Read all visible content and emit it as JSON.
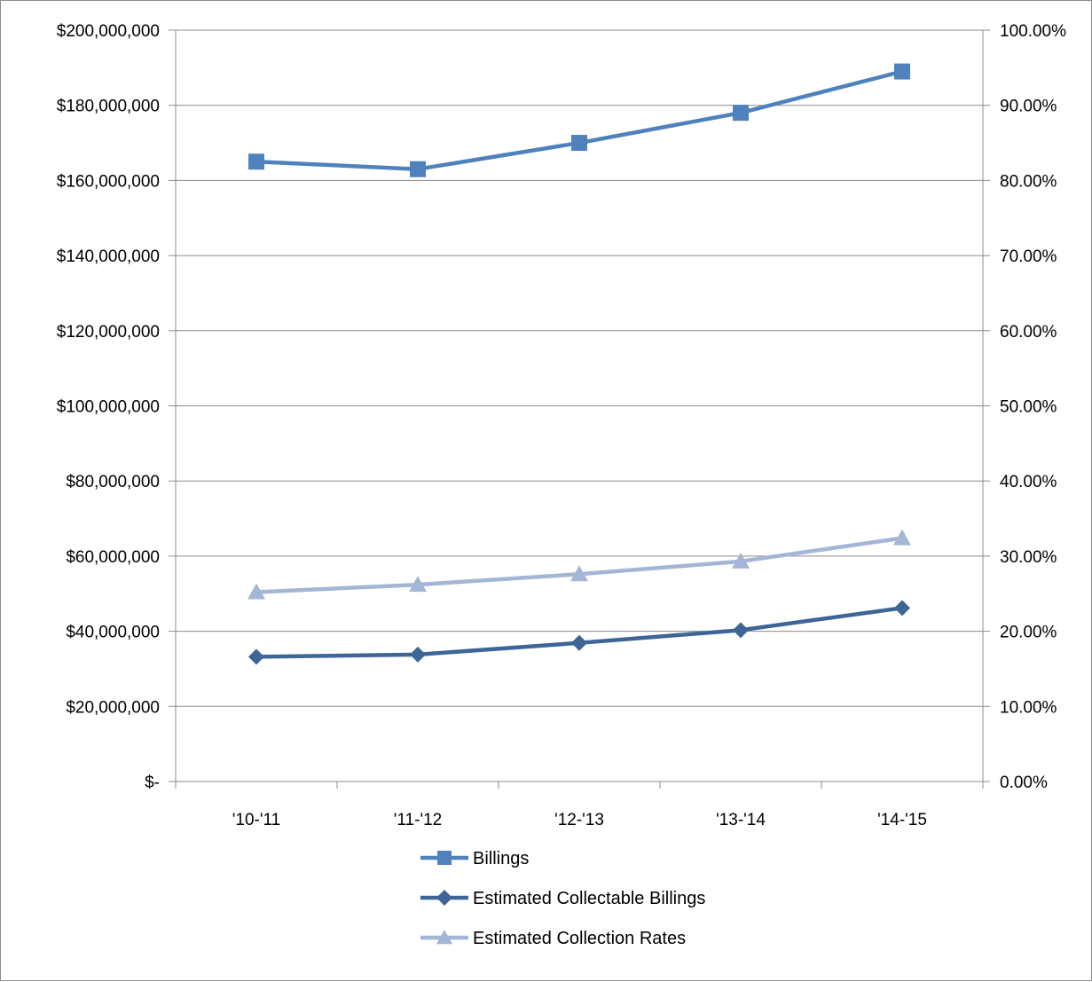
{
  "chart_data": {
    "type": "line",
    "categories": [
      "'10-'11",
      "'11-'12",
      "'12-'13",
      "'13-'14",
      "'14-'15"
    ],
    "y_left": {
      "ylim": [
        0,
        200000000
      ],
      "tick_labels": [
        "$-",
        "$20,000,000",
        "$40,000,000",
        "$60,000,000",
        "$80,000,000",
        "$100,000,000",
        "$120,000,000",
        "$140,000,000",
        "$160,000,000",
        "$180,000,000",
        "$200,000,000"
      ]
    },
    "y_right": {
      "ylim": [
        0,
        100
      ],
      "unit": "%",
      "tick_labels": [
        "0.00%",
        "10.00%",
        "20.00%",
        "30.00%",
        "40.00%",
        "50.00%",
        "60.00%",
        "70.00%",
        "80.00%",
        "90.00%",
        "100.00%"
      ]
    },
    "grid": true,
    "legend_position": "bottom",
    "series": [
      {
        "name": "Billings",
        "axis": "left",
        "marker": "square",
        "color": "#4f81bd",
        "values": [
          165000000,
          163000000,
          170000000,
          178000000,
          189000000
        ]
      },
      {
        "name": "Estimated Collectable Billings",
        "axis": "left",
        "marker": "diamond",
        "color": "#3d6596",
        "values": [
          33200000,
          33800000,
          36900000,
          40300000,
          46200000
        ]
      },
      {
        "name": "Estimated Collection Rates",
        "axis": "right",
        "marker": "triangle",
        "color": "#a4b6d6",
        "values": [
          25.2,
          26.2,
          27.6,
          29.3,
          32.4
        ]
      }
    ]
  }
}
